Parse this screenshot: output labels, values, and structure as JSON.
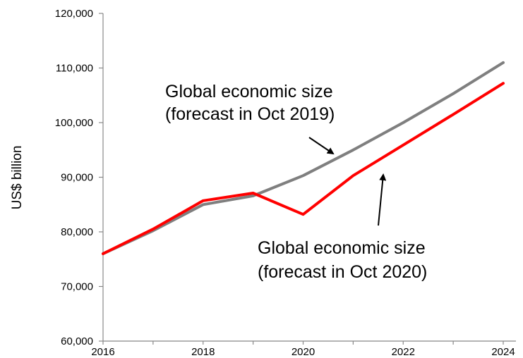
{
  "chart_data": {
    "type": "line",
    "title": "",
    "xlabel": "",
    "ylabel": "US$ billion",
    "x": [
      2016,
      2017,
      2018,
      2019,
      2020,
      2021,
      2022,
      2023,
      2024
    ],
    "x_tick_labels": [
      "2016",
      "2018",
      "2020",
      "2022",
      "2024"
    ],
    "y_tick_labels": [
      "60,000",
      "70,000",
      "80,000",
      "90,000",
      "100,000",
      "110,000",
      "120,000"
    ],
    "ylim": [
      60000,
      120000
    ],
    "xlim": [
      2016,
      2024
    ],
    "grid": false,
    "series": [
      {
        "name": "Global economic size (forecast in Oct 2019)",
        "color": "#7f7f7f",
        "values": [
          76000,
          80200,
          85000,
          86600,
          90300,
          95000,
          100000,
          105300,
          111000
        ]
      },
      {
        "name": "Global economic size (forecast in Oct 2020)",
        "color": "#ff0000",
        "values": [
          76000,
          80500,
          85700,
          87100,
          83200,
          90300,
          95900,
          101500,
          107200
        ]
      }
    ],
    "annotations": [
      {
        "lines": [
          "Global economic size",
          "(forecast in Oct 2019)"
        ]
      },
      {
        "lines": [
          "Global economic size",
          "(forecast in Oct 2020)"
        ]
      }
    ]
  }
}
